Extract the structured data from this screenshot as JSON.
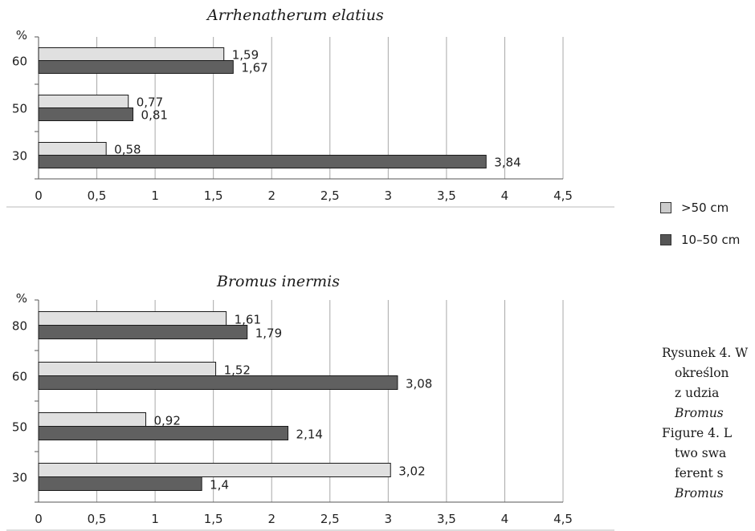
{
  "chart_data": [
    {
      "type": "bar",
      "orientation": "horizontal",
      "title": "Arrhenatherum elatius",
      "ylabel": "%",
      "categories": [
        "60",
        "50",
        "30"
      ],
      "series": [
        {
          "name": ">50 cm",
          "values": [
            1.59,
            0.77,
            0.58
          ],
          "color": "#e0e0e0"
        },
        {
          "name": "10–50 cm",
          "values": [
            1.67,
            0.81,
            3.84
          ],
          "color": "#606060"
        }
      ],
      "value_labels": [
        [
          "1,59",
          "0,77",
          "0,58"
        ],
        [
          "1,67",
          "0,81",
          "3,84"
        ]
      ],
      "xticks": [
        "0",
        "0,5",
        "1",
        "1,5",
        "2",
        "2,5",
        "3",
        "3,5",
        "4",
        "4,5"
      ],
      "xlim": [
        0,
        4.5
      ],
      "grid": "vertical"
    },
    {
      "type": "bar",
      "orientation": "horizontal",
      "title": "Bromus inermis",
      "ylabel": "%",
      "categories": [
        "80",
        "60",
        "50",
        "30"
      ],
      "series": [
        {
          "name": ">50 cm",
          "values": [
            1.61,
            1.52,
            0.92,
            3.02
          ],
          "color": "#e0e0e0"
        },
        {
          "name": "10–50 cm",
          "values": [
            1.79,
            3.08,
            2.14,
            1.4
          ],
          "color": "#606060"
        }
      ],
      "value_labels": [
        [
          "1,61",
          "1,52",
          "0,92",
          "3,02"
        ],
        [
          "1,79",
          "3,08",
          "2,14",
          "1,4"
        ]
      ],
      "xticks": [
        "0",
        "0,5",
        "1",
        "1,5",
        "2",
        "2,5",
        "3",
        "3,5",
        "4",
        "4,5"
      ],
      "xlim": [
        0,
        4.5
      ],
      "grid": "vertical"
    }
  ],
  "legend": [
    {
      "label": ">50 cm",
      "color": "#cccccc"
    },
    {
      "label": "10–50 cm",
      "color": "#555555"
    }
  ],
  "caption_pl": [
    "Rysunek 4. W",
    "określon",
    "z udzia",
    "Bromus"
  ],
  "caption_en": [
    "Figure 4. L",
    "two swa",
    "ferent s",
    "Bromus"
  ]
}
